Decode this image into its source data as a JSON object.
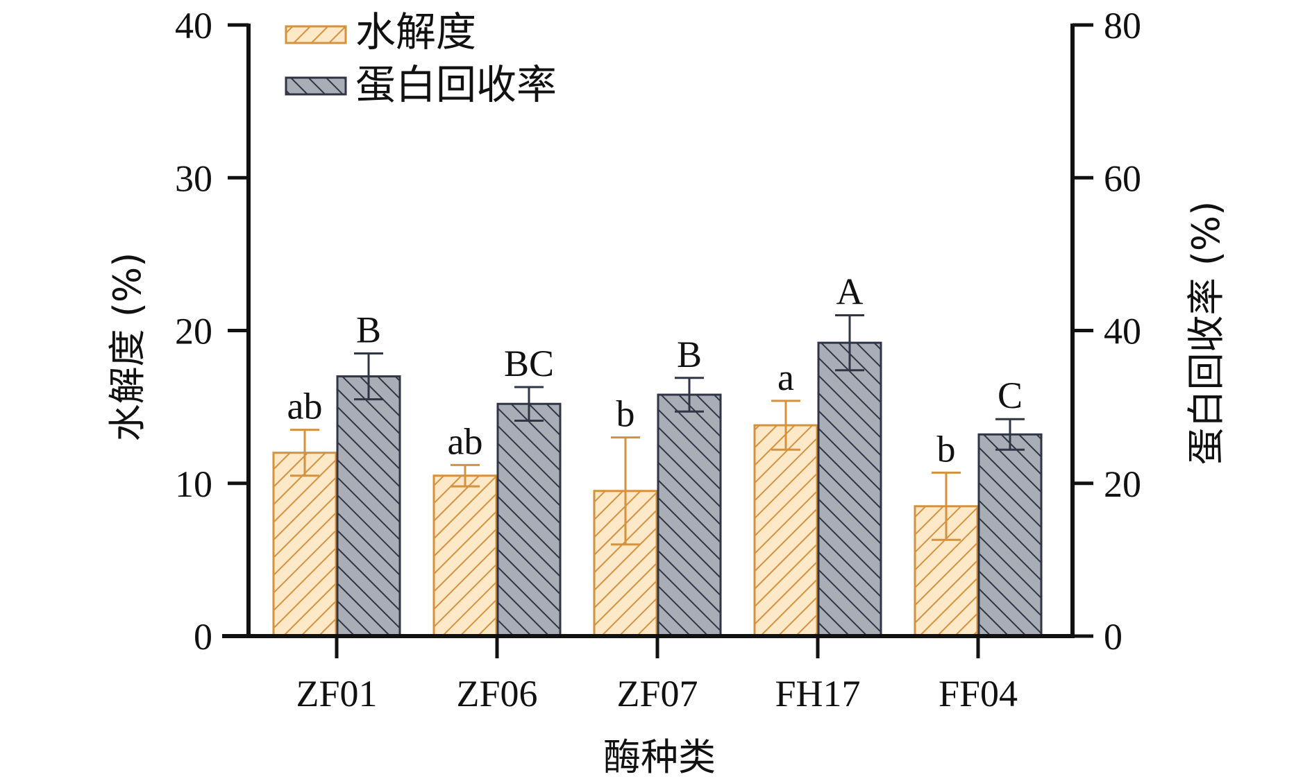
{
  "chart_data": {
    "type": "bar",
    "categories": [
      "ZF01",
      "ZF06",
      "ZF07",
      "FH17",
      "FF04"
    ],
    "xlabel": "酶种类",
    "ylabel_left": "水解度 (%)",
    "ylabel_right": "蛋白回收率 (%)",
    "ylim_left": [
      0,
      40
    ],
    "ylim_right": [
      0,
      80
    ],
    "yticks_left": [
      "0",
      "10",
      "20",
      "30",
      "40"
    ],
    "yticks_right": [
      "0",
      "20",
      "40",
      "60",
      "80"
    ],
    "legend_position": "top-left",
    "grid": false,
    "series": [
      {
        "name": "水解度",
        "axis": "left",
        "color": "#d4913e",
        "fill": "#fde9c8",
        "values": [
          12.0,
          10.5,
          9.5,
          13.8,
          8.5
        ],
        "errors": [
          1.5,
          0.7,
          3.5,
          1.6,
          2.2
        ],
        "significance": [
          "ab",
          "ab",
          "b",
          "a",
          "b"
        ]
      },
      {
        "name": "蛋白回收率",
        "axis": "right",
        "color": "#2f3544",
        "fill": "#a9adb6",
        "values": [
          34.0,
          30.4,
          31.6,
          38.4,
          26.4
        ],
        "errors": [
          3.0,
          2.2,
          2.2,
          3.6,
          2.0
        ],
        "significance": [
          "B",
          "BC",
          "B",
          "A",
          "C"
        ]
      }
    ]
  }
}
